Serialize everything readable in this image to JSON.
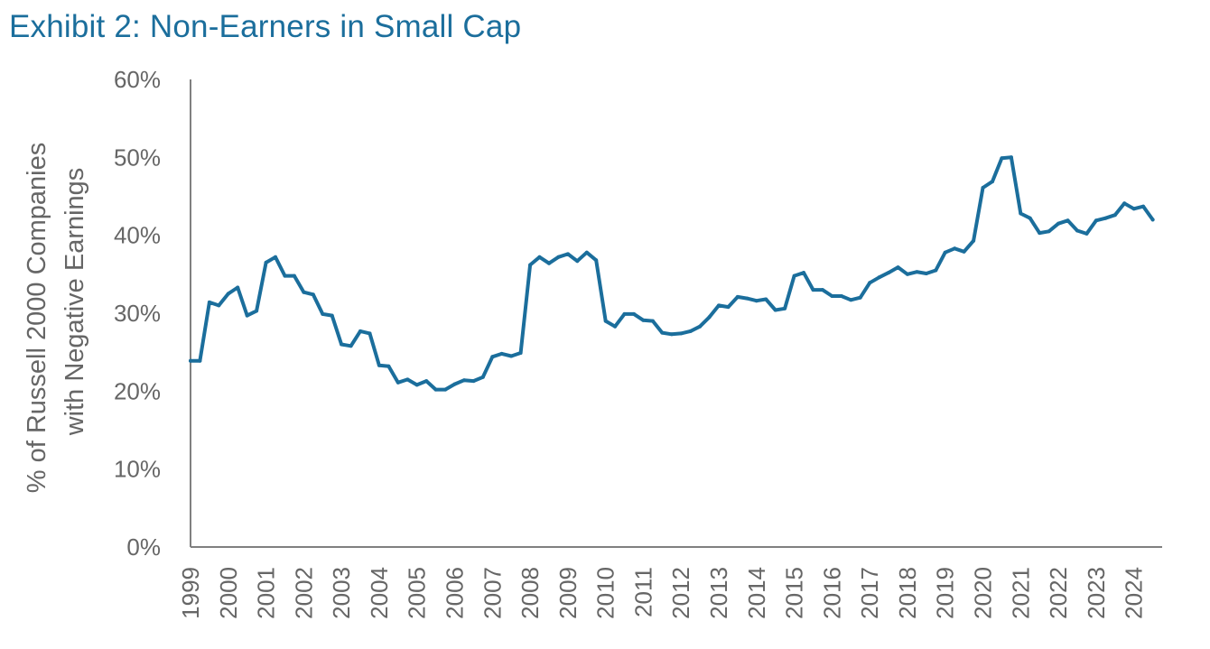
{
  "page": {
    "title": "Exhibit 2: Non-Earners in Small Cap"
  },
  "colors": {
    "title": "#1b6e9c",
    "line": "#1b6e9c",
    "axis": "#666666",
    "text": "#666666"
  },
  "chart_data": {
    "type": "line",
    "title": "Exhibit 2: Non-Earners in Small Cap",
    "ylabel": [
      "% of Russell 2000 Companies",
      "with Negative Earnings"
    ],
    "xlabel": "",
    "ylim": [
      0,
      60
    ],
    "y_ticks": [
      0,
      10,
      20,
      30,
      40,
      50,
      60
    ],
    "y_tick_labels": [
      "0%",
      "10%",
      "20%",
      "30%",
      "40%",
      "50%",
      "60%"
    ],
    "xlim": [
      1999,
      2024.75
    ],
    "x_ticks": [
      1999,
      2000,
      2001,
      2002,
      2003,
      2004,
      2005,
      2006,
      2007,
      2008,
      2009,
      2010,
      2011,
      2012,
      2013,
      2014,
      2015,
      2016,
      2017,
      2018,
      2019,
      2020,
      2021,
      2022,
      2023,
      2024
    ],
    "x_tick_labels": [
      "1999",
      "2000",
      "2001",
      "2002",
      "2003",
      "2004",
      "2005",
      "2006",
      "2007",
      "2008",
      "2009",
      "2010",
      "2011",
      "2012",
      "2013",
      "2014",
      "2015",
      "2016",
      "2017",
      "2018",
      "2019",
      "2020",
      "2021",
      "2022",
      "2023",
      "2024"
    ],
    "grid": false,
    "legend": "none",
    "series": [
      {
        "name": "% of Russell 2000 Companies with Negative Earnings",
        "x": [
          1999.0,
          1999.25,
          1999.5,
          1999.75,
          2000.0,
          2000.25,
          2000.5,
          2000.75,
          2001.0,
          2001.25,
          2001.5,
          2001.75,
          2002.0,
          2002.25,
          2002.5,
          2002.75,
          2003.0,
          2003.25,
          2003.5,
          2003.75,
          2004.0,
          2004.25,
          2004.5,
          2004.75,
          2005.0,
          2005.25,
          2005.5,
          2005.75,
          2006.0,
          2006.25,
          2006.5,
          2006.75,
          2007.0,
          2007.25,
          2007.5,
          2007.75,
          2008.0,
          2008.25,
          2008.5,
          2008.75,
          2009.0,
          2009.25,
          2009.5,
          2009.75,
          2010.0,
          2010.25,
          2010.5,
          2010.75,
          2011.0,
          2011.25,
          2011.5,
          2011.75,
          2012.0,
          2012.25,
          2012.5,
          2012.75,
          2013.0,
          2013.25,
          2013.5,
          2013.75,
          2014.0,
          2014.25,
          2014.5,
          2014.75,
          2015.0,
          2015.25,
          2015.5,
          2015.75,
          2016.0,
          2016.25,
          2016.5,
          2016.75,
          2017.0,
          2017.25,
          2017.5,
          2017.75,
          2018.0,
          2018.25,
          2018.5,
          2018.75,
          2019.0,
          2019.25,
          2019.5,
          2019.75,
          2020.0,
          2020.25,
          2020.5,
          2020.75,
          2021.0,
          2021.25,
          2021.5,
          2021.75,
          2022.0,
          2022.25,
          2022.5,
          2022.75,
          2023.0,
          2023.25,
          2023.5,
          2023.75,
          2024.0,
          2024.25,
          2024.5
        ],
        "values": [
          23.9,
          23.9,
          31.4,
          31.0,
          32.5,
          33.3,
          29.7,
          30.3,
          36.5,
          37.2,
          34.8,
          34.8,
          32.7,
          32.4,
          29.9,
          29.7,
          26.0,
          25.8,
          27.7,
          27.4,
          23.3,
          23.2,
          21.1,
          21.5,
          20.8,
          21.3,
          20.2,
          20.2,
          20.9,
          21.4,
          21.3,
          21.8,
          24.4,
          24.8,
          24.5,
          24.9,
          36.2,
          37.2,
          36.4,
          37.2,
          37.6,
          36.7,
          37.8,
          36.8,
          29.0,
          28.3,
          29.9,
          29.9,
          29.1,
          29.0,
          27.5,
          27.3,
          27.4,
          27.7,
          28.3,
          29.5,
          31.0,
          30.8,
          32.1,
          31.9,
          31.6,
          31.8,
          30.4,
          30.6,
          34.8,
          35.2,
          33.0,
          33.0,
          32.2,
          32.2,
          31.7,
          32.0,
          33.9,
          34.6,
          35.2,
          35.9,
          35.0,
          35.3,
          35.1,
          35.5,
          37.8,
          38.3,
          37.9,
          39.3,
          46.1,
          46.9,
          49.9,
          50.0,
          42.8,
          42.2,
          40.3,
          40.5,
          41.5,
          41.9,
          40.6,
          40.2,
          41.9,
          42.2,
          42.6,
          44.1,
          43.4,
          43.7,
          42.0
        ]
      }
    ]
  }
}
